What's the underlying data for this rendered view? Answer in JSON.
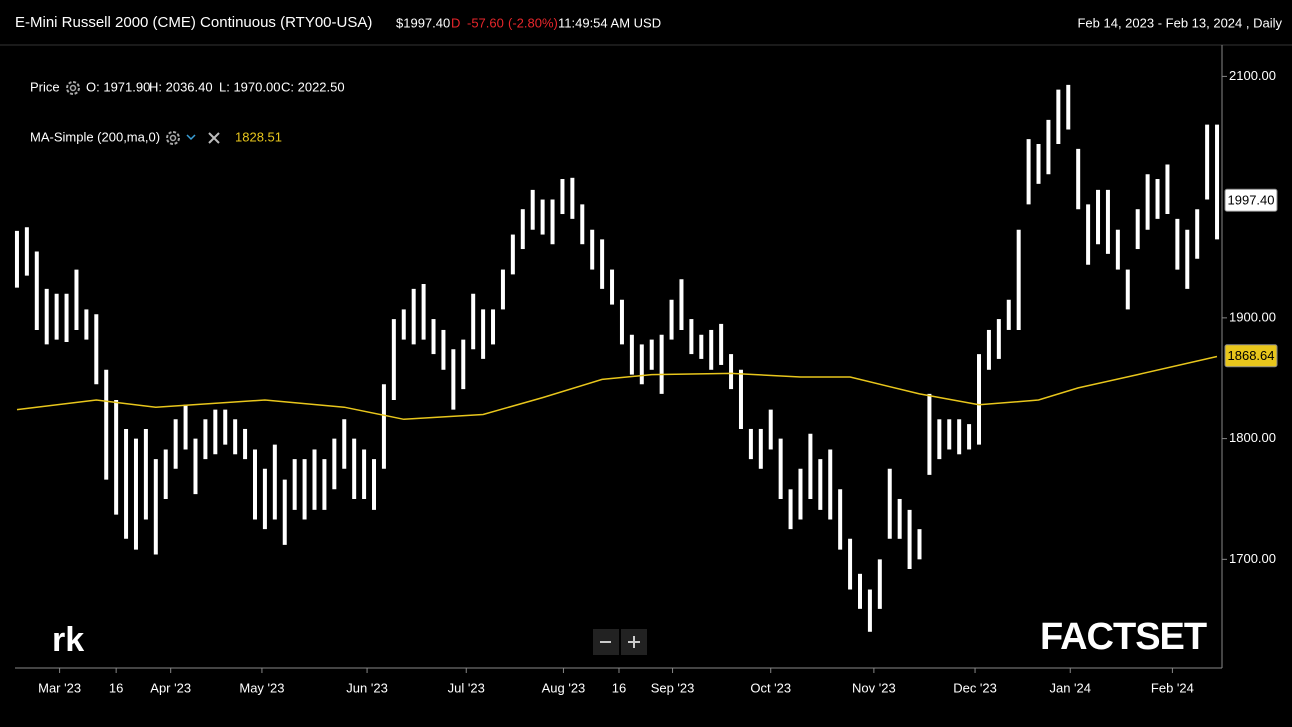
{
  "chart_data": {
    "type": "ohlc",
    "title": "E-Mini Russell 2000 (CME) Continuous (RTY00-USA)",
    "last_price": "$1997.40",
    "flag": "D",
    "change": "-57.60",
    "change_pct": "(-2.80%)",
    "time": "11:49:54 AM USD",
    "range": "Feb 14, 2023 - Feb 13, 2024 , Daily",
    "legend_price": "Price",
    "open": "O: 1971.90",
    "high_label": "H: 2036.40",
    "low_label": "L: 1970.00",
    "close": "C: 2022.50",
    "ma_label": "MA-Simple (200,ma,0)",
    "ma_value": "1828.51",
    "brand": "FACTSET",
    "logo": "rk",
    "bar_color": "#ffffff",
    "ma_color": "#e8c61c",
    "ylim": [
      1610,
      2126
    ],
    "xlim": [
      0,
      122
    ],
    "yticks": [
      {
        "value": 1700,
        "label": "1700.00"
      },
      {
        "value": 1800,
        "label": "1800.00"
      },
      {
        "value": 1900,
        "label": "1900.00"
      },
      {
        "value": 2100,
        "label": "2100.00"
      }
    ],
    "price_markers": [
      {
        "value": 1997.4,
        "label": "1997.40"
      },
      {
        "value": 1868.64,
        "label": "1868.64"
      }
    ],
    "xticks": [
      {
        "value": 4.3,
        "label": "Mar '23"
      },
      {
        "value": 10,
        "label": "16"
      },
      {
        "value": 15.5,
        "label": "Apr '23"
      },
      {
        "value": 24.7,
        "label": "May '23"
      },
      {
        "value": 35.3,
        "label": "Jun '23"
      },
      {
        "value": 45.3,
        "label": "Jul '23"
      },
      {
        "value": 55.1,
        "label": "Aug '23"
      },
      {
        "value": 60.7,
        "label": "16"
      },
      {
        "value": 66.1,
        "label": "Sep '23"
      },
      {
        "value": 76,
        "label": "Oct '23"
      },
      {
        "value": 86.4,
        "label": "Nov '23"
      },
      {
        "value": 96.6,
        "label": "Dec '23"
      },
      {
        "value": 106.2,
        "label": "Jan '24"
      },
      {
        "value": 116.5,
        "label": "Feb '24"
      }
    ],
    "high": [
      1972,
      1975,
      1955,
      1924,
      1920,
      1920,
      1940,
      1907,
      1903,
      1857,
      1832,
      1808,
      1800,
      1808,
      1783,
      1791,
      1816,
      1828,
      1800,
      1816,
      1824,
      1824,
      1816,
      1808,
      1791,
      1775,
      1795,
      1766,
      1783,
      1783,
      1791,
      1783,
      1800,
      1816,
      1800,
      1791,
      1783,
      1845,
      1899,
      1907,
      1924,
      1928,
      1899,
      1890,
      1874,
      1882,
      1920,
      1907,
      1907,
      1940,
      1969,
      1990,
      2006,
      1998,
      1998,
      2015,
      2016,
      1994,
      1973,
      1965,
      1940,
      1915,
      1886,
      1878,
      1882,
      1886,
      1915,
      1932,
      1899,
      1886,
      1890,
      1895,
      1870,
      1857,
      1808,
      1808,
      1824,
      1800,
      1758,
      1775,
      1804,
      1783,
      1791,
      1758,
      1717,
      1688,
      1675,
      1700,
      1775,
      1750,
      1741,
      1725,
      1837,
      1816,
      1816,
      1816,
      1812,
      1870,
      1890,
      1899,
      1915,
      1973,
      2048,
      2044,
      2064,
      2089,
      2093,
      2040,
      1994,
      2006,
      2006,
      1973,
      1940,
      1990,
      2019,
      2015,
      2027,
      1982,
      1973,
      1990,
      2060,
      2060
    ],
    "low": [
      1925,
      1935,
      1890,
      1878,
      1882,
      1880,
      1890,
      1882,
      1845,
      1766,
      1737,
      1717,
      1708,
      1733,
      1704,
      1750,
      1775,
      1791,
      1754,
      1783,
      1787,
      1795,
      1787,
      1783,
      1733,
      1725,
      1733,
      1712,
      1741,
      1733,
      1741,
      1741,
      1758,
      1775,
      1750,
      1750,
      1741,
      1775,
      1832,
      1882,
      1878,
      1882,
      1870,
      1857,
      1824,
      1841,
      1874,
      1866,
      1878,
      1907,
      1936,
      1957,
      1973,
      1969,
      1961,
      1986,
      1982,
      1961,
      1940,
      1924,
      1911,
      1878,
      1853,
      1845,
      1857,
      1837,
      1882,
      1890,
      1870,
      1866,
      1857,
      1861,
      1841,
      1808,
      1783,
      1775,
      1791,
      1750,
      1725,
      1733,
      1750,
      1741,
      1733,
      1708,
      1675,
      1659,
      1640,
      1659,
      1717,
      1717,
      1692,
      1700,
      1770,
      1783,
      1791,
      1787,
      1791,
      1795,
      1857,
      1866,
      1890,
      1890,
      1994,
      2011,
      2019,
      2044,
      2056,
      1990,
      1944,
      1961,
      1953,
      1940,
      1907,
      1957,
      1973,
      1982,
      1986,
      1940,
      1924,
      1949,
      1998,
      1965
    ],
    "ma": {
      "x": [
        0,
        8,
        14,
        25,
        33,
        39,
        47,
        53,
        59,
        64,
        72,
        79,
        84,
        91,
        97,
        103,
        107,
        113,
        121
      ],
      "values": [
        1824,
        1832,
        1826,
        1832,
        1826,
        1816,
        1820,
        1834,
        1849,
        1853,
        1854,
        1851,
        1851,
        1837,
        1828,
        1832,
        1842,
        1853,
        1868
      ]
    }
  }
}
